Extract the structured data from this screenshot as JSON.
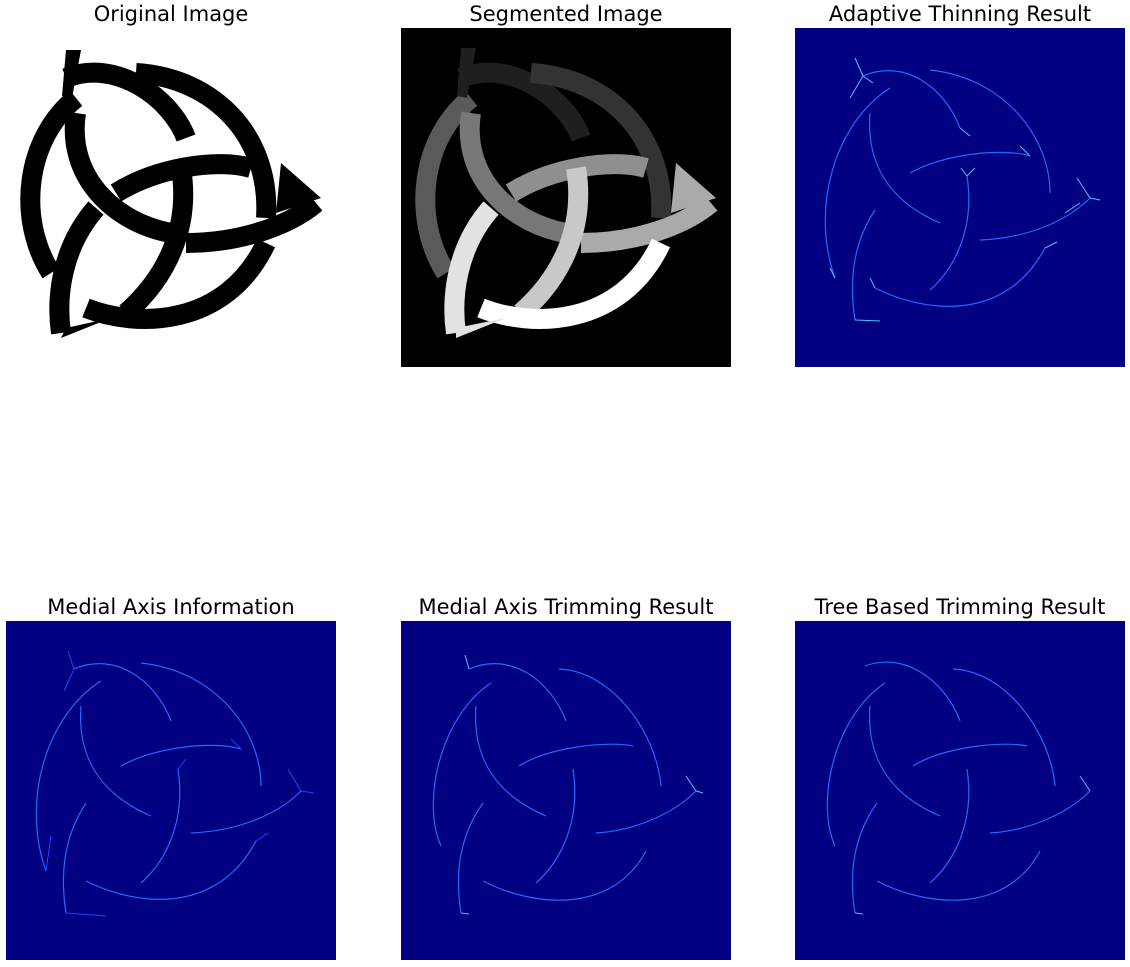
{
  "panels": [
    {
      "title": "Original Image",
      "kind": "original"
    },
    {
      "title": "Segmented Image",
      "kind": "segmented"
    },
    {
      "title": "Adaptive Thinning Result",
      "kind": "skeleton",
      "branches": "many"
    },
    {
      "title": "Medial Axis Information",
      "kind": "skeleton",
      "branches": "many"
    },
    {
      "title": "Medial Axis Trimming Result",
      "kind": "skeleton",
      "branches": "few"
    },
    {
      "title": "Tree Based Trimming Result",
      "kind": "skeleton",
      "branches": "none"
    }
  ],
  "colors": {
    "page_background": "#ffffff",
    "skeleton_background": "#000080",
    "skeleton_line": "#1e6bff",
    "skeleton_highlight": "#4fc3ff",
    "segment_shades": [
      "#1f1f1f",
      "#333333",
      "#5a5a5a",
      "#777777",
      "#8f8f8f",
      "#aaaaaa",
      "#c8c8c8",
      "#e2e2e2",
      "#ffffff"
    ]
  }
}
